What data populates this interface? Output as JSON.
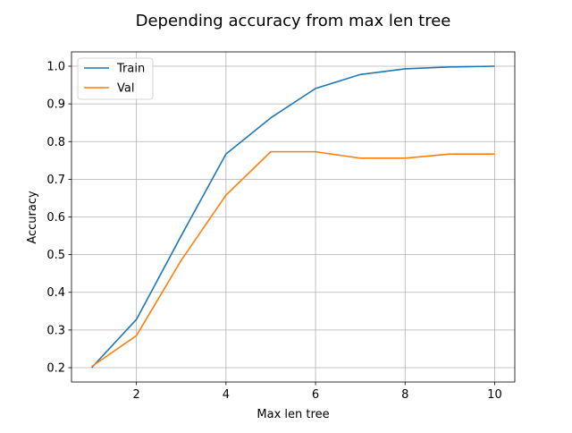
{
  "chart_data": {
    "type": "line",
    "title": "Depending accuracy from max len tree",
    "xlabel": "Max len tree",
    "ylabel": "Accuracy",
    "x": [
      1,
      2,
      3,
      4,
      5,
      6,
      7,
      8,
      9,
      10
    ],
    "xlim": [
      0.55,
      10.45
    ],
    "ylim": [
      0.162,
      1.038
    ],
    "xticks": [
      2,
      4,
      6,
      8,
      10
    ],
    "xtick_labels": [
      "2",
      "4",
      "6",
      "8",
      "10"
    ],
    "yticks": [
      0.2,
      0.3,
      0.4,
      0.5,
      0.6,
      0.7,
      0.8,
      0.9,
      1.0
    ],
    "ytick_labels": [
      "0.2",
      "0.3",
      "0.4",
      "0.5",
      "0.6",
      "0.7",
      "0.8",
      "0.9",
      "1.0"
    ],
    "grid": true,
    "legend_position": "upper-left",
    "series": [
      {
        "name": "Train",
        "color": "#1f77b4",
        "values": [
          0.2,
          0.328,
          0.55,
          0.767,
          0.863,
          0.941,
          0.978,
          0.993,
          0.998,
          1.0
        ]
      },
      {
        "name": "Val",
        "color": "#ff7f0e",
        "values": [
          0.203,
          0.285,
          0.485,
          0.658,
          0.773,
          0.773,
          0.756,
          0.756,
          0.767,
          0.767
        ]
      }
    ]
  }
}
